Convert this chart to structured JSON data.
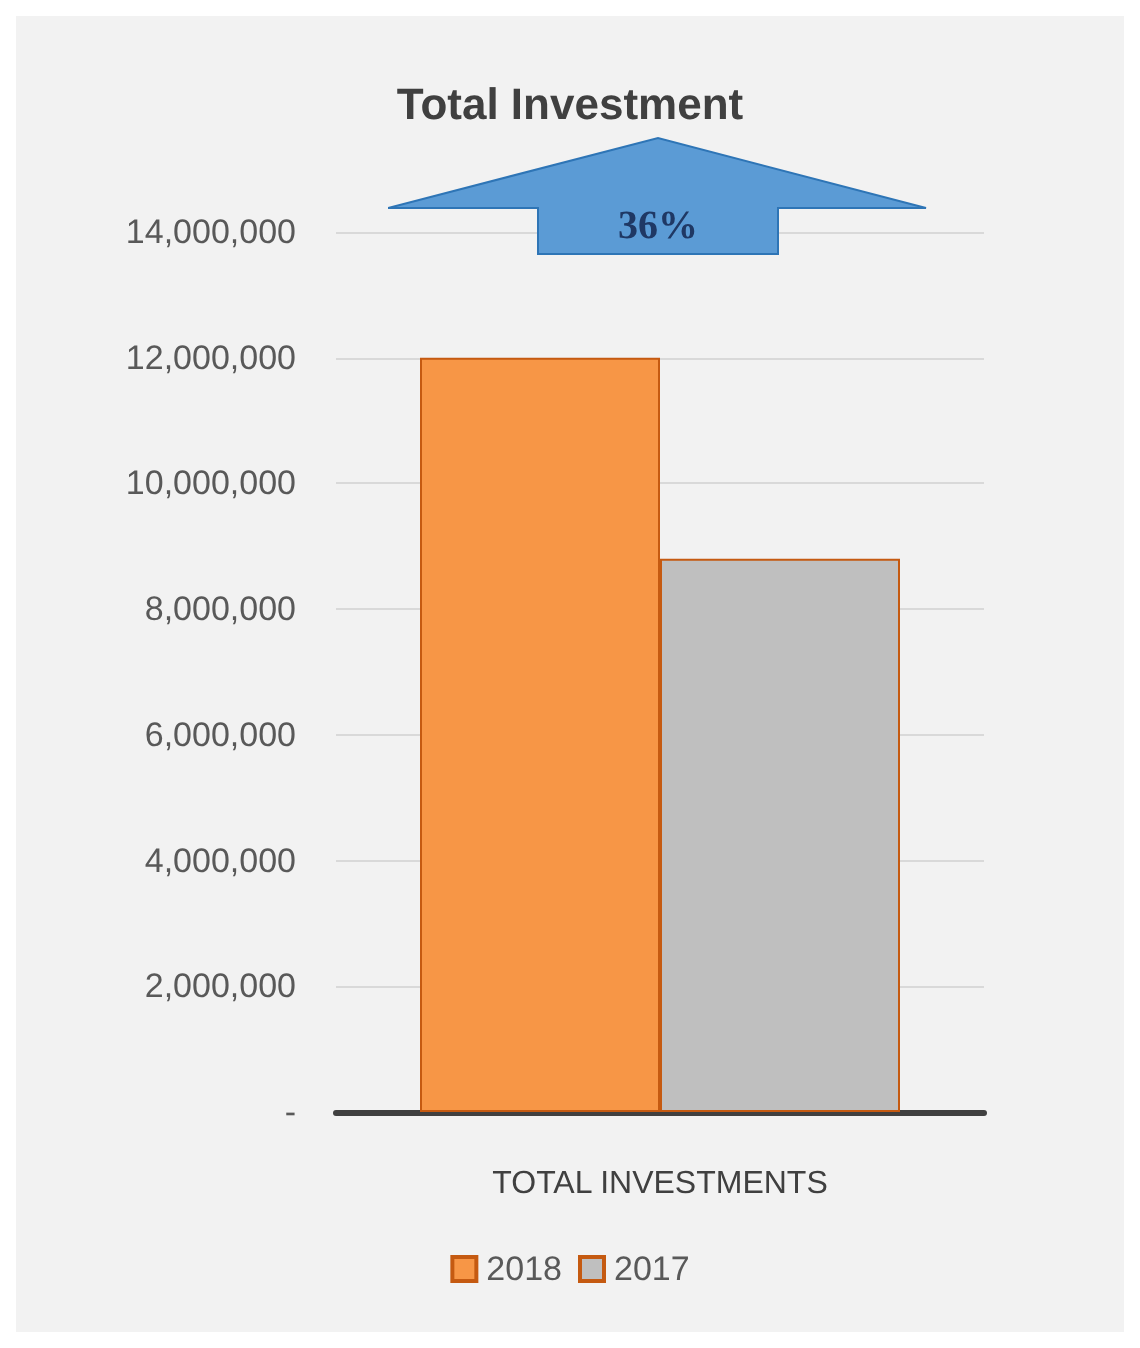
{
  "chart_data": {
    "type": "bar",
    "title": "Total Investment",
    "categories": [
      "TOTAL INVESTMENTS"
    ],
    "series": [
      {
        "name": "2018",
        "color": "#f79646",
        "values": [
          12000000
        ]
      },
      {
        "name": "2017",
        "color": "#bfbfbf",
        "values": [
          8800000
        ]
      }
    ],
    "ylim": [
      0,
      14000000
    ],
    "yticks": [
      {
        "value": 0,
        "label": "-"
      },
      {
        "value": 2000000,
        "label": "2,000,000"
      },
      {
        "value": 4000000,
        "label": "4,000,000"
      },
      {
        "value": 6000000,
        "label": "6,000,000"
      },
      {
        "value": 8000000,
        "label": "8,000,000"
      },
      {
        "value": 10000000,
        "label": "10,000,000"
      },
      {
        "value": 12000000,
        "label": "12,000,000"
      },
      {
        "value": 14000000,
        "label": "14,000,000"
      }
    ],
    "grid": "y",
    "legend": "bottom",
    "annotations": [
      "36%"
    ]
  }
}
